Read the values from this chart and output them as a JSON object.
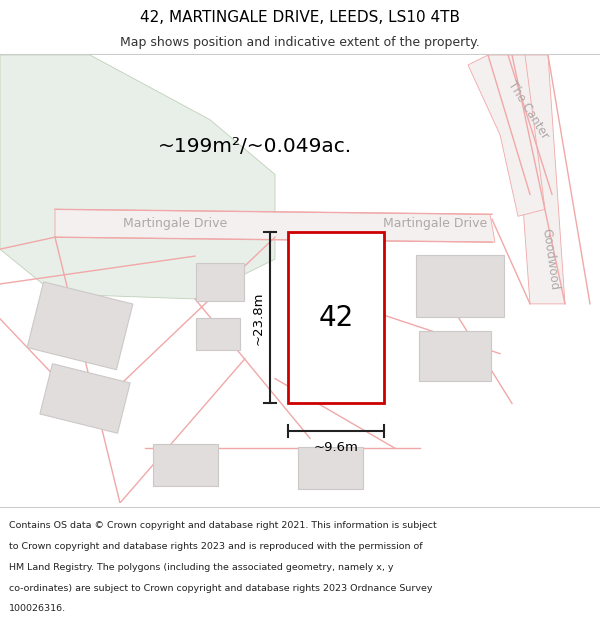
{
  "title": "42, MARTINGALE DRIVE, LEEDS, LS10 4TB",
  "subtitle": "Map shows position and indicative extent of the property.",
  "area_text": "~199m²/~0.049ac.",
  "label_42": "42",
  "dim_height": "~23.8m",
  "dim_width": "~9.6m",
  "street_label_left": "Martingale Drive",
  "street_label_right": "Martingale Drive",
  "street_label_canter": "The Canter",
  "street_label_goodwood": "Goodwood",
  "footer_lines": [
    "Contains OS data © Crown copyright and database right 2021. This information is subject",
    "to Crown copyright and database rights 2023 and is reproduced with the permission of",
    "HM Land Registry. The polygons (including the associated geometry, namely x, y",
    "co-ordinates) are subject to Crown copyright and database rights 2023 Ordnance Survey",
    "100026316."
  ],
  "map_bg": "#f7f3f3",
  "green_area_color": "#e8efe8",
  "road_fill_color": "#f5f0f0",
  "building_fill": "#e2dddd",
  "building_stroke": "#ccc8c8",
  "subject_fill": "#ffffff",
  "subject_stroke": "#cc0000",
  "dim_line_color": "#222222",
  "street_text_color": "#b0a8a8",
  "road_line_color": "#f0a8a8",
  "header_line_color": "#cccccc",
  "footer_divider_color": "#cccccc"
}
